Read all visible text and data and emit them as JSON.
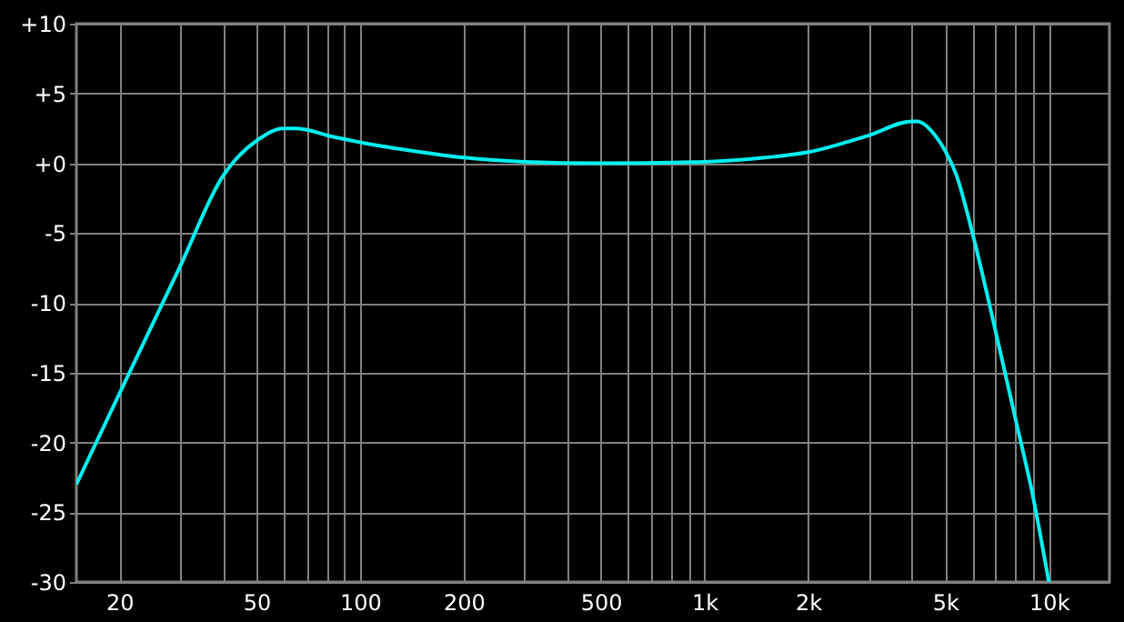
{
  "chart_data": {
    "type": "line",
    "x": [
      15,
      20,
      30,
      40,
      44,
      50,
      60,
      65,
      70,
      80,
      100,
      150,
      200,
      300,
      500,
      1000,
      1500,
      2000,
      3000,
      4000,
      4140,
      4770,
      5000,
      5400,
      6000,
      7000,
      8000,
      9000,
      10000
    ],
    "series": [
      {
        "color": "#00f0f0",
        "values": [
          -23.0,
          -16.5,
          -7.4,
          -0.9,
          0.4,
          1.6,
          2.5,
          2.5,
          2.4,
          2.0,
          1.5,
          0.8,
          0.4,
          0.1,
          0.0,
          0.1,
          0.4,
          0.8,
          2.0,
          3.0,
          3.0,
          1.7,
          0.9,
          -0.9,
          -5.0,
          -12.0,
          -18.3,
          -23.9,
          -30.0
        ]
      }
    ],
    "log": "x",
    "xlim": [
      15,
      15000
    ],
    "xticks": [
      20,
      {
        "value": 30,
        "label": null
      },
      {
        "value": 40,
        "label": null
      },
      50,
      {
        "value": 60,
        "label": null
      },
      {
        "value": 70,
        "label": null
      },
      {
        "value": 80,
        "label": null
      },
      {
        "value": 90,
        "label": null
      },
      100,
      200,
      {
        "value": 300,
        "label": null
      },
      {
        "value": 400,
        "label": null
      },
      500,
      {
        "value": 600,
        "label": null
      },
      {
        "value": 700,
        "label": null
      },
      {
        "value": 800,
        "label": null
      },
      {
        "value": 900,
        "label": null
      },
      {
        "value": 1000,
        "label": "1k"
      },
      {
        "value": 2000,
        "label": "2k"
      },
      {
        "value": 3000,
        "label": null
      },
      {
        "value": 4000,
        "label": null
      },
      {
        "value": 5000,
        "label": "5k"
      },
      {
        "value": 6000,
        "label": null
      },
      {
        "value": 7000,
        "label": null
      },
      {
        "value": 8000,
        "label": null
      },
      {
        "value": 9000,
        "label": null
      },
      {
        "value": 10000,
        "label": "10k"
      }
    ],
    "ylim": [
      -30,
      10
    ],
    "yticks": [
      {
        "value": 10,
        "label": "+10"
      },
      {
        "value": 5,
        "label": "+5"
      },
      {
        "value": 0,
        "label": "+0"
      },
      -5,
      -10,
      -15,
      -20,
      -25,
      -30
    ],
    "grid": true,
    "marker": "none",
    "line_style": "solid"
  }
}
